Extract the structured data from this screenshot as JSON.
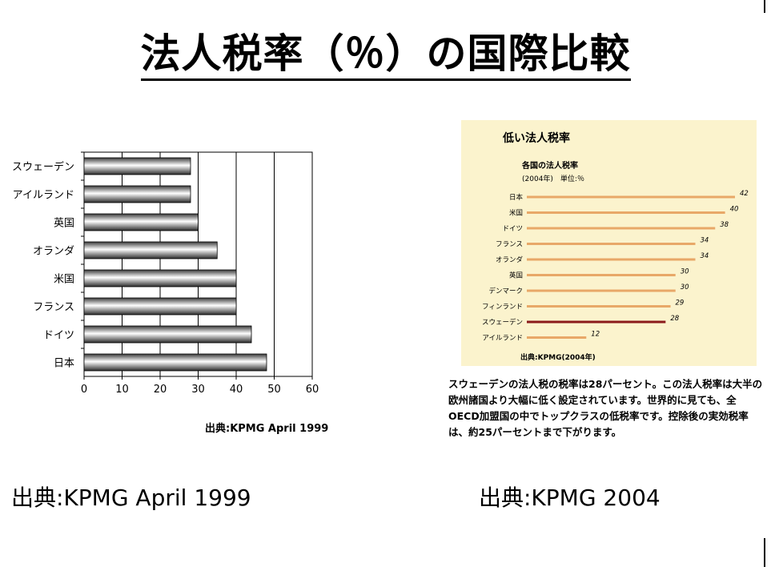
{
  "title": "法人税率（％）の国際比較",
  "chart_data": [
    {
      "type": "bar",
      "orientation": "horizontal",
      "categories": [
        "スウェーデン",
        "アイルランド",
        "英国",
        "オランダ",
        "米国",
        "フランス",
        "ドイツ",
        "日本"
      ],
      "values": [
        28,
        28,
        30,
        35,
        40,
        40,
        44,
        48
      ],
      "xlim": [
        0,
        60
      ],
      "xticks": [
        "0",
        "10",
        "20",
        "30",
        "40",
        "50",
        "60"
      ],
      "grid": "vertical",
      "source": "出典:KPMG  April  1999"
    },
    {
      "type": "bar",
      "orientation": "horizontal",
      "title": "低い法人税率",
      "subtitle": "各国の法人税率",
      "unit_note": "(2004年)　単位:％",
      "categories": [
        "日本",
        "米国",
        "ドイツ",
        "フランス",
        "オランダ",
        "英国",
        "デンマーク",
        "フィンランド",
        "スウェーデン",
        "アイルランド"
      ],
      "values": [
        42,
        40,
        38,
        34,
        34,
        30,
        30,
        29,
        28,
        12
      ],
      "value_labels": [
        "42",
        "40",
        "38",
        "34",
        "34",
        "30",
        "30",
        "29",
        "28",
        "12"
      ],
      "bar_color": "#e8a868",
      "highlight_category": "スウェーデン",
      "highlight_color": "#8b1a1a",
      "source": "出典:KPMG(2004年)"
    }
  ],
  "caption": "スウェーデンの法人税の税率は28パーセント。この法人税率は大半の欧州諸国より大幅に低く設定されています。世界的に見ても、全OECD加盟国の中でトップクラスの低税率です。控除後の実効税率は、約25パーセントまで下がります。",
  "footer_left": "出典:KPMG  April  1999",
  "footer_right": "出典:KPMG  2004"
}
